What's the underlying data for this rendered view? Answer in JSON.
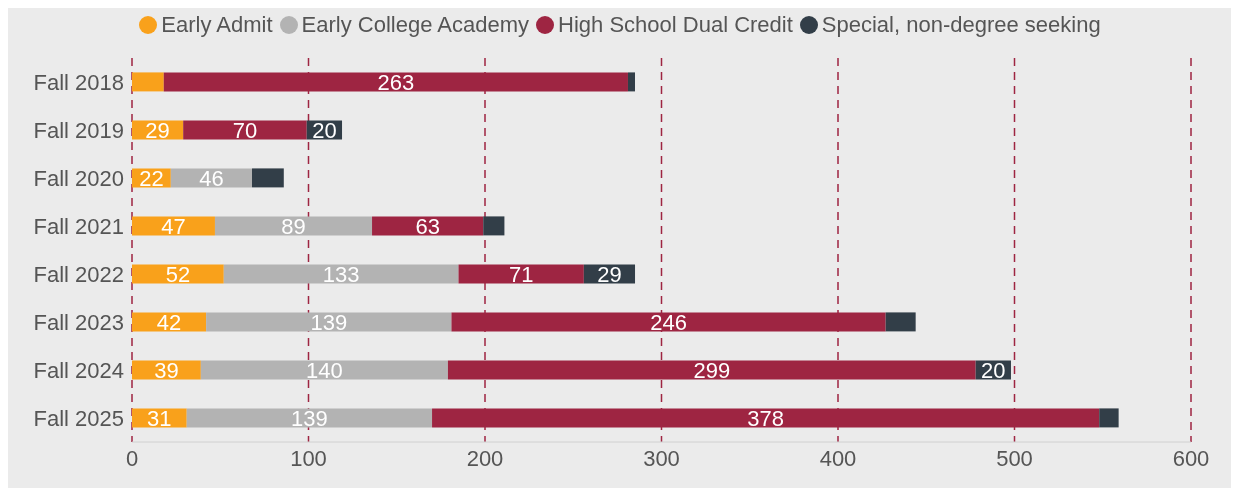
{
  "chart_data": {
    "type": "bar",
    "orientation": "horizontal",
    "stacked": true,
    "categories": [
      "Fall 2018",
      "Fall 2019",
      "Fall 2020",
      "Fall 2021",
      "Fall 2022",
      "Fall 2023",
      "Fall 2024",
      "Fall 2025"
    ],
    "series": [
      {
        "name": "Early Admit",
        "color": "#f9a11b",
        "values": [
          18,
          29,
          22,
          47,
          52,
          42,
          39,
          31
        ],
        "value_labels": [
          null,
          "29",
          "22",
          "47",
          "52",
          "42",
          "39",
          "31"
        ]
      },
      {
        "name": "Early College Academy",
        "color": "#b3b3b3",
        "values": [
          0,
          0,
          46,
          89,
          133,
          139,
          140,
          139
        ],
        "value_labels": [
          null,
          null,
          "46",
          "89",
          "133",
          "139",
          "140",
          "139"
        ]
      },
      {
        "name": "High School Dual Credit",
        "color": "#9e2542",
        "values": [
          263,
          70,
          0,
          63,
          71,
          246,
          299,
          378
        ],
        "value_labels": [
          "263",
          "70",
          null,
          "63",
          "71",
          "246",
          "299",
          "378"
        ]
      },
      {
        "name": "Special, non-degree seeking",
        "color": "#323e48",
        "values": [
          4,
          20,
          18,
          12,
          29,
          17,
          20,
          11
        ],
        "value_labels": [
          null,
          "20",
          null,
          null,
          "29",
          null,
          "20",
          null
        ]
      }
    ],
    "xlim": [
      0,
      600
    ],
    "xticks": [
      0,
      100,
      200,
      300,
      400,
      500,
      600
    ],
    "grid": "x",
    "legend": "top"
  }
}
